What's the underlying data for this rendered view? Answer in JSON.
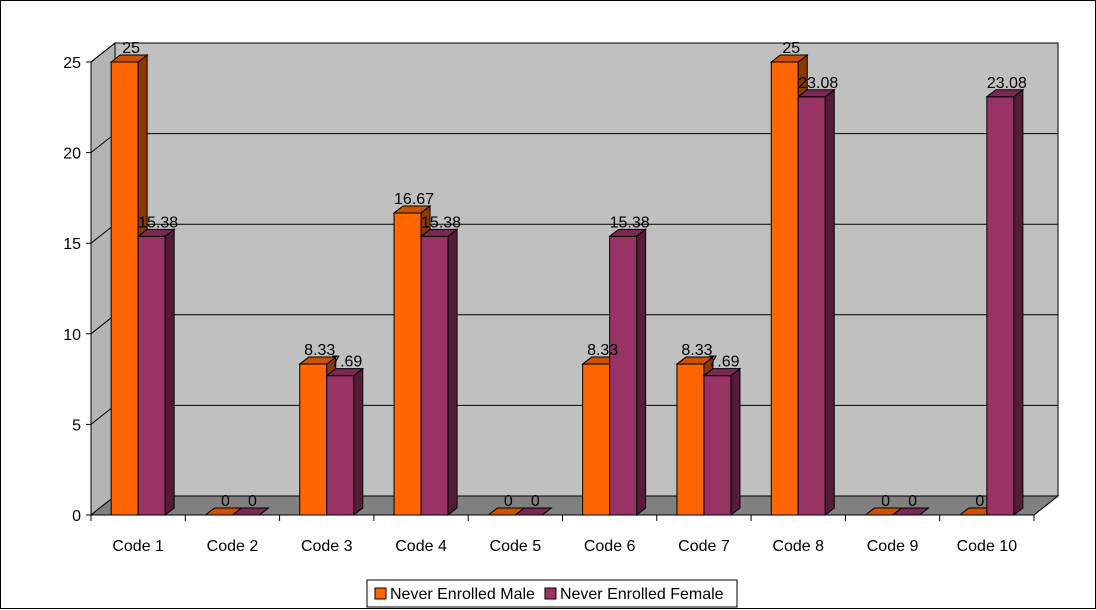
{
  "chart_data": {
    "type": "bar",
    "title": "",
    "xlabel": "",
    "ylabel": "",
    "ylim": [
      0,
      25
    ],
    "yticks": [
      0,
      5,
      10,
      15,
      20,
      25
    ],
    "grid": true,
    "legend_position": "bottom",
    "categories": [
      "Code 1",
      "Code 2",
      "Code 3",
      "Code 4",
      "Code 5",
      "Code 6",
      "Code 7",
      "Code 8",
      "Code 9",
      "Code 10"
    ],
    "series": [
      {
        "name": "Never Enrolled Male",
        "color": "#FF6600",
        "values": [
          25,
          0,
          8.33,
          16.67,
          0,
          8.33,
          8.33,
          25,
          0,
          0
        ],
        "labels": [
          "25",
          "0",
          "8.33",
          "16.67",
          "0",
          "8.33",
          "8.33",
          "25",
          "0",
          "0"
        ]
      },
      {
        "name": "Never Enrolled Female",
        "color": "#993366",
        "values": [
          15.38,
          0,
          7.69,
          15.38,
          0,
          15.38,
          7.69,
          23.08,
          0,
          23.08
        ],
        "labels": [
          "15.38",
          "0",
          "7.69",
          "15.38",
          "0",
          "15.38",
          "7.69",
          "23.08",
          "0",
          "23.08"
        ]
      }
    ],
    "plot_background": "#C0C0C0",
    "floor_color": "#808080"
  }
}
